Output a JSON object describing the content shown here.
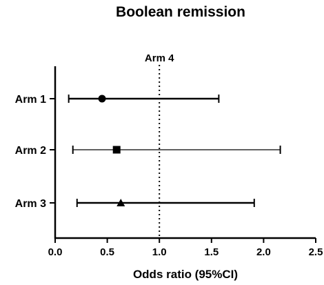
{
  "chart_data": {
    "type": "scatter",
    "subtype": "forest-plot",
    "title": "Boolean remission",
    "xlabel": "Odds ratio (95%CI)",
    "ylabel": "",
    "xlim": [
      0,
      2.5
    ],
    "xticks": [
      "0.0",
      "0.5",
      "1.0",
      "1.5",
      "2.0",
      "2.5"
    ],
    "reference": {
      "label": "Arm 4",
      "x": 1.0,
      "style": "dotted"
    },
    "categories": [
      "Arm 1",
      "Arm 2",
      "Arm 3"
    ],
    "series": [
      {
        "category": "Arm 1",
        "estimate": 0.45,
        "lower": 0.13,
        "upper": 1.57,
        "marker": "circle"
      },
      {
        "category": "Arm 2",
        "estimate": 0.59,
        "lower": 0.17,
        "upper": 2.16,
        "marker": "square"
      },
      {
        "category": "Arm 3",
        "estimate": 0.63,
        "lower": 0.21,
        "upper": 1.91,
        "marker": "triangle"
      }
    ],
    "grid": false,
    "legend": "none",
    "color": "#000000"
  }
}
